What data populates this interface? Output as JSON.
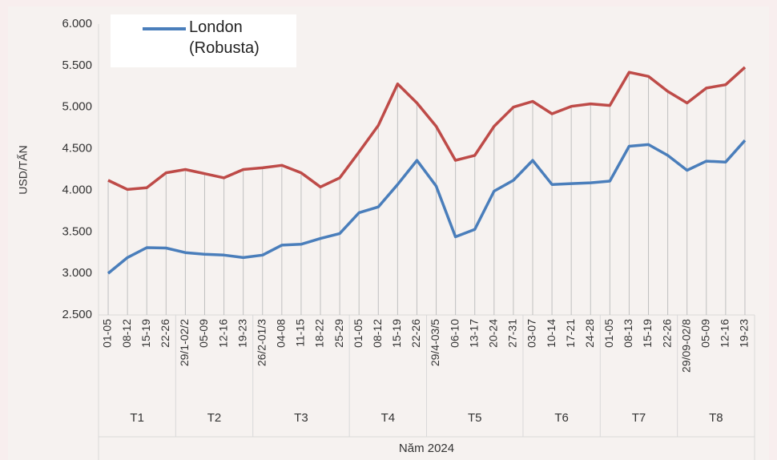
{
  "chart_data": {
    "type": "line",
    "y_label": "USD/TẤN",
    "x_group_title": "Năm 2024",
    "groups": [
      {
        "label": "T1",
        "categories": [
          "01-05",
          "08-12",
          "15-19",
          "22-26"
        ]
      },
      {
        "label": "T2",
        "categories": [
          "29/1-02/2",
          "05-09",
          "12-16",
          "19-23"
        ]
      },
      {
        "label": "T3",
        "categories": [
          "26/2-01/3",
          "04-08",
          "11-15",
          "18-22",
          "25-29"
        ]
      },
      {
        "label": "T4",
        "categories": [
          "01-05",
          "08-12",
          "15-19",
          "22-26"
        ]
      },
      {
        "label": "T5",
        "categories": [
          "29/4-03/5",
          "06-10",
          "13-17",
          "20-24",
          "27-31"
        ]
      },
      {
        "label": "T6",
        "categories": [
          "03-07",
          "10-14",
          "17-21",
          "24-28"
        ]
      },
      {
        "label": "T7",
        "categories": [
          "01-05",
          "08-13",
          "15-19",
          "22-26"
        ]
      },
      {
        "label": "T8",
        "categories": [
          "29/09-02/8",
          "05-09",
          "12-16",
          "19-23"
        ]
      }
    ],
    "series": [
      {
        "name": "London (Robusta)",
        "color": "#4a7ebb",
        "values": [
          3000,
          3190,
          3310,
          3305,
          3250,
          3230,
          3220,
          3190,
          3220,
          3340,
          3350,
          3420,
          3480,
          3730,
          3800,
          4070,
          4360,
          4050,
          3440,
          3530,
          3990,
          4120,
          4360,
          4070,
          4080,
          4090,
          4110,
          4530,
          4550,
          4420,
          4240,
          4350,
          4340,
          4600
        ]
      },
      {
        "color": "#be4b48",
        "values": [
          4120,
          4010,
          4030,
          4210,
          4250,
          4200,
          4150,
          4250,
          4270,
          4300,
          4210,
          4040,
          4150,
          4460,
          4780,
          5280,
          5050,
          4770,
          4360,
          4420,
          4770,
          5000,
          5070,
          4920,
          5010,
          5040,
          5020,
          5420,
          5370,
          5190,
          5050,
          5230,
          5270,
          5480
        ]
      }
    ],
    "ylim": [
      2500,
      6000
    ],
    "yticks": [
      {
        "value": 2500,
        "label": "2.500"
      },
      {
        "value": 3000,
        "label": "3.000"
      },
      {
        "value": 3500,
        "label": "3.500"
      },
      {
        "value": 4000,
        "label": "4.000"
      },
      {
        "value": 4500,
        "label": "4.500"
      },
      {
        "value": 5000,
        "label": "5.000"
      },
      {
        "value": 5500,
        "label": "5.500"
      },
      {
        "value": 6000,
        "label": "6.000"
      }
    ],
    "drop_lines": true
  }
}
